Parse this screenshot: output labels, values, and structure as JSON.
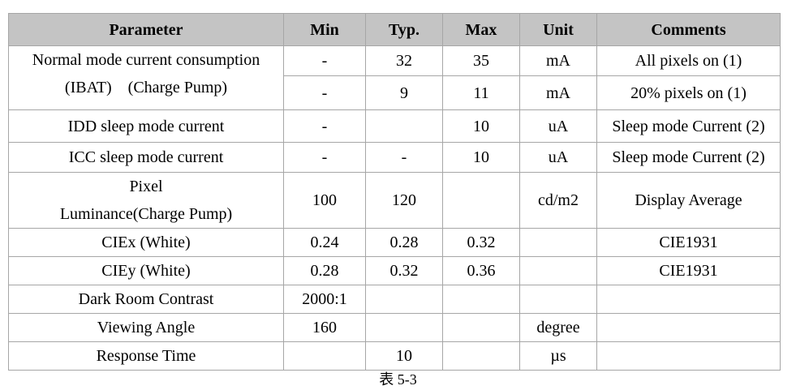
{
  "table": {
    "header": {
      "parameter": "Parameter",
      "min": "Min",
      "typ": "Typ.",
      "max": "Max",
      "unit": "Unit",
      "comments": "Comments"
    },
    "rows": [
      {
        "parameter": "Normal mode current consumption\n(IBAT)    (Charge Pump)",
        "min": "-",
        "typ": 32,
        "max": 35,
        "unit": "mA",
        "comments": "All pixels on (1)"
      },
      {
        "min": "-",
        "typ": 9,
        "max": 11,
        "unit": "mA",
        "comments": "20% pixels on (1)"
      },
      {
        "parameter": "IDD sleep mode current",
        "min": "-",
        "max": 10,
        "unit": "uA",
        "comments": "Sleep mode Current (2)"
      },
      {
        "parameter": "ICC sleep mode current",
        "min": "-",
        "typ": "-",
        "max": 10,
        "unit": "uA",
        "comments": "Sleep mode Current (2)"
      },
      {
        "parameter": "Pixel\nLuminance(Charge Pump)",
        "min": 100,
        "typ": 120,
        "unit": "cd/m2",
        "comments": "Display Average"
      },
      {
        "parameter": "CIEx (White)",
        "min": 0.24,
        "typ": 0.28,
        "max": 0.32,
        "comments": "CIE1931"
      },
      {
        "parameter": "CIEy (White)",
        "min": 0.28,
        "typ": 0.32,
        "max": 0.36,
        "comments": "CIE1931"
      },
      {
        "parameter": "Dark Room Contrast",
        "min": "2000:1"
      },
      {
        "parameter": "Viewing Angle",
        "min": 160,
        "unit": "degree"
      },
      {
        "parameter": "Response Time",
        "typ": 10,
        "unit": "µs"
      }
    ]
  },
  "caption": "表 5-3"
}
